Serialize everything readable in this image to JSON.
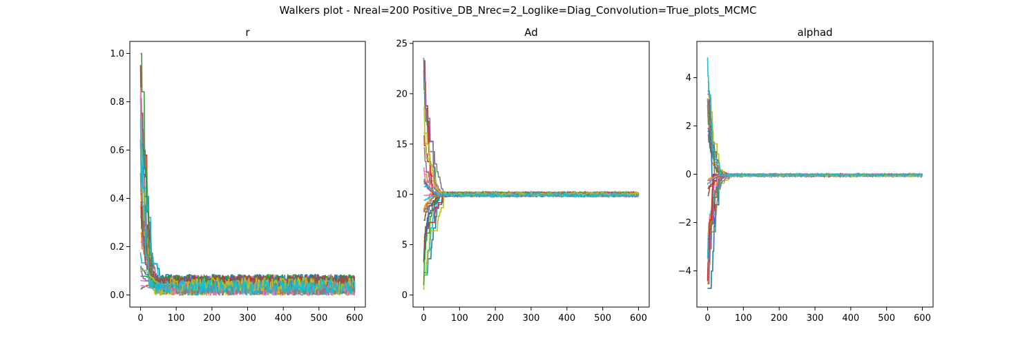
{
  "figure": {
    "suptitle": "Walkers plot - Nreal=200 Positive_DB_Nrec=2_Loglike=Diag_Convolution=True_plots_MCMC"
  },
  "palette": [
    "#1f77b4",
    "#ff7f0e",
    "#2ca02c",
    "#d62728",
    "#9467bd",
    "#8c564b",
    "#e377c2",
    "#7f7f7f",
    "#bcbd22",
    "#17becf"
  ],
  "chart_data": [
    {
      "type": "line",
      "title": "r",
      "xlabel": "",
      "ylabel": "",
      "xlim": [
        -30,
        630
      ],
      "ylim": [
        -0.05,
        1.05
      ],
      "xticks": [
        0,
        100,
        200,
        300,
        400,
        500,
        600
      ],
      "yticks": [
        0.0,
        0.2,
        0.4,
        0.6,
        0.8,
        1.0
      ],
      "ytick_labels": [
        "0.0",
        "0.2",
        "0.4",
        "0.6",
        "0.8",
        "1.0"
      ],
      "legend": "none",
      "grid": false,
      "walkers": {
        "count": 30,
        "steps": 600,
        "init_min": 0.0,
        "init_max": 1.0,
        "burn_in_steps": [
          20,
          100
        ],
        "equilibrium_center": 0.04,
        "equilibrium_spread": 0.035,
        "equilibrium_min": 0.0,
        "equilibrium_max": 0.095
      }
    },
    {
      "type": "line",
      "title": "Ad",
      "xlabel": "",
      "ylabel": "",
      "xlim": [
        -30,
        630
      ],
      "ylim": [
        -1.2,
        25.2
      ],
      "xticks": [
        0,
        100,
        200,
        300,
        400,
        500,
        600
      ],
      "yticks": [
        0,
        5,
        10,
        15,
        20,
        25
      ],
      "ytick_labels": [
        "0",
        "5",
        "10",
        "15",
        "20",
        "25"
      ],
      "legend": "none",
      "grid": false,
      "walkers": {
        "count": 30,
        "steps": 600,
        "init_min": 0.0,
        "init_max": 24.0,
        "burn_in_steps": [
          10,
          90
        ],
        "equilibrium_center": 10.0,
        "equilibrium_spread": 0.2,
        "equilibrium_min": 9.7,
        "equilibrium_max": 10.25
      }
    },
    {
      "type": "line",
      "title": "alphad",
      "xlabel": "",
      "ylabel": "",
      "xlim": [
        -30,
        630
      ],
      "ylim": [
        -5.5,
        5.5
      ],
      "xticks": [
        0,
        100,
        200,
        300,
        400,
        500,
        600
      ],
      "yticks": [
        -4,
        -2,
        0,
        2,
        4
      ],
      "ytick_labels": [
        "−4",
        "−2",
        "0",
        "2",
        "4"
      ],
      "legend": "none",
      "grid": false,
      "walkers": {
        "count": 30,
        "steps": 600,
        "init_min": -5.0,
        "init_max": 5.0,
        "burn_in_steps": [
          10,
          80
        ],
        "equilibrium_center": -0.04,
        "equilibrium_spread": 0.04,
        "equilibrium_min": -0.1,
        "equilibrium_max": 0.02
      }
    }
  ]
}
